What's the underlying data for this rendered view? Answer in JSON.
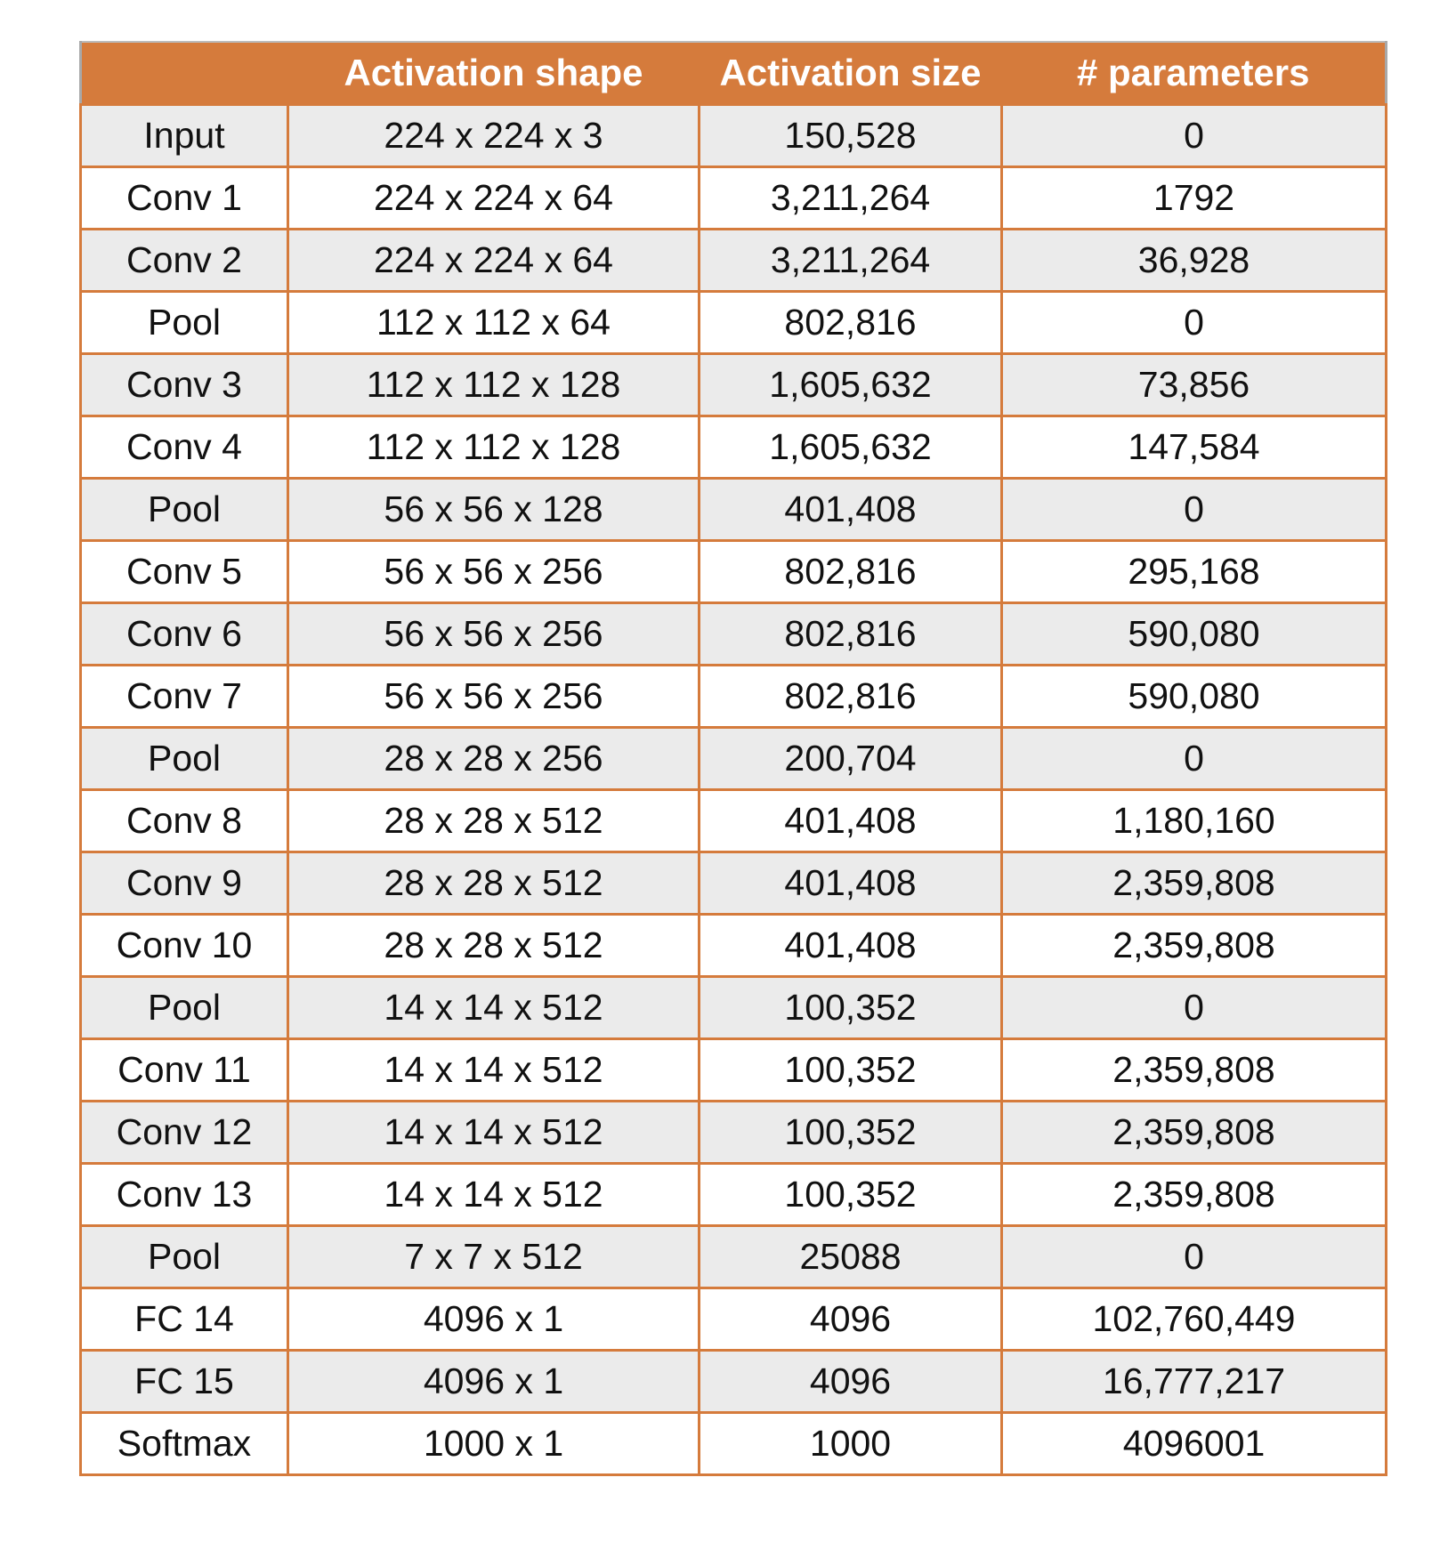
{
  "table": {
    "columns": [
      "",
      "Activation shape",
      "Activation size",
      "# parameters"
    ],
    "rows": [
      [
        "Input",
        "224 x 224 x 3",
        "150,528",
        "0"
      ],
      [
        "Conv 1",
        "224 x 224 x 64",
        "3,211,264",
        "1792"
      ],
      [
        "Conv 2",
        "224 x 224 x 64",
        "3,211,264",
        "36,928"
      ],
      [
        "Pool",
        "112 x 112 x 64",
        "802,816",
        "0"
      ],
      [
        "Conv 3",
        "112 x 112 x 128",
        "1,605,632",
        "73,856"
      ],
      [
        "Conv 4",
        "112 x 112 x 128",
        "1,605,632",
        "147,584"
      ],
      [
        "Pool",
        "56 x 56 x 128",
        "401,408",
        "0"
      ],
      [
        "Conv 5",
        "56 x 56 x 256",
        "802,816",
        "295,168"
      ],
      [
        "Conv 6",
        "56 x 56 x 256",
        "802,816",
        "590,080"
      ],
      [
        "Conv 7",
        "56 x 56 x 256",
        "802,816",
        "590,080"
      ],
      [
        "Pool",
        "28 x 28 x 256",
        "200,704",
        "0"
      ],
      [
        "Conv 8",
        "28 x 28 x 512",
        "401,408",
        "1,180,160"
      ],
      [
        "Conv 9",
        "28 x 28 x 512",
        "401,408",
        "2,359,808"
      ],
      [
        "Conv 10",
        "28 x 28 x 512",
        "401,408",
        "2,359,808"
      ],
      [
        "Pool",
        "14 x 14 x 512",
        "100,352",
        "0"
      ],
      [
        "Conv 11",
        "14 x 14 x 512",
        "100,352",
        "2,359,808"
      ],
      [
        "Conv 12",
        "14 x 14 x 512",
        "100,352",
        "2,359,808"
      ],
      [
        "Conv 13",
        "14 x 14 x 512",
        "100,352",
        "2,359,808"
      ],
      [
        "Pool",
        "7 x 7 x 512",
        "25088",
        "0"
      ],
      [
        "FC 14",
        "4096 x 1",
        "4096",
        "102,760,449"
      ],
      [
        "FC 15",
        "4096 x 1",
        "4096",
        "16,777,217"
      ],
      [
        "Softmax",
        "1000 x 1",
        "1000",
        "4096001"
      ]
    ]
  },
  "colors": {
    "header_background": "#d57b3c",
    "header_text": "#ffffff",
    "border": "#d57b3c",
    "row_shaded": "#ebebeb",
    "row_plain": "#ffffff"
  }
}
